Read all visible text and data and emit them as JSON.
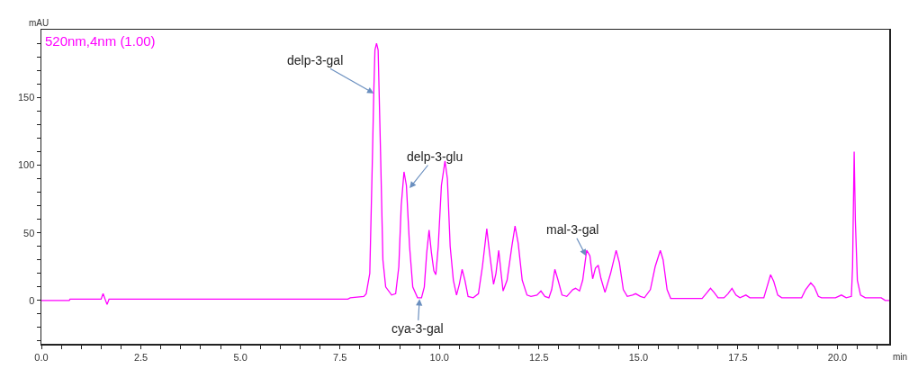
{
  "chart_data": {
    "type": "line",
    "xlabel": "min",
    "ylabel": "mAU",
    "annotations": [
      "520nm,4nm (1.00)",
      {
        "text": "delp-3-gal",
        "x": 8.35,
        "y": 153
      },
      {
        "text": "delp-3-glu",
        "x": 9.25,
        "y": 83
      },
      {
        "text": "cya-3-gal",
        "x": 9.5,
        "y": 1
      },
      {
        "text": "mal-3-gal",
        "x": 13.68,
        "y": 33
      }
    ],
    "series": [
      {
        "color": "#ff00ff",
        "x": [
          0,
          0.7,
          0.72,
          1.5,
          1.55,
          1.6,
          1.65,
          1.7,
          7.7,
          7.76,
          8.1,
          8.16,
          8.25,
          8.32,
          8.35,
          8.38,
          8.42,
          8.46,
          8.52,
          8.58,
          8.65,
          8.8,
          8.9,
          8.98,
          9.04,
          9.11,
          9.17,
          9.25,
          9.33,
          9.45,
          9.55,
          9.62,
          9.68,
          9.74,
          9.8,
          9.86,
          9.91,
          9.97,
          10.05,
          10.14,
          10.2,
          10.27,
          10.35,
          10.43,
          10.5,
          10.57,
          10.64,
          10.72,
          10.85,
          10.98,
          11.08,
          11.19,
          11.26,
          11.36,
          11.42,
          11.49,
          11.55,
          11.6,
          11.7,
          11.82,
          11.9,
          11.98,
          12.08,
          12.2,
          12.3,
          12.45,
          12.55,
          12.65,
          12.75,
          12.82,
          12.9,
          12.98,
          13.08,
          13.2,
          13.35,
          13.42,
          13.52,
          13.6,
          13.7,
          13.78,
          13.85,
          13.92,
          13.99,
          14.06,
          14.16,
          14.3,
          14.44,
          14.52,
          14.62,
          14.72,
          14.85,
          14.93,
          15.05,
          15.15,
          15.3,
          15.42,
          15.55,
          15.62,
          15.72,
          15.81,
          16.6,
          16.7,
          16.81,
          16.9,
          17.0,
          17.15,
          17.25,
          17.35,
          17.45,
          17.55,
          17.7,
          17.8,
          18.15,
          18.23,
          18.32,
          18.4,
          18.5,
          18.6,
          19.1,
          19.2,
          19.33,
          19.42,
          19.52,
          19.6,
          19.95,
          20.1,
          20.22,
          20.35,
          20.38,
          20.42,
          20.45,
          20.5,
          20.58,
          20.7,
          21.1,
          21.2,
          21.3
        ],
        "values": [
          0,
          0,
          1,
          1,
          5,
          1,
          -3,
          1,
          1,
          2,
          3,
          5,
          20,
          110,
          153,
          185,
          190,
          185,
          110,
          30,
          10,
          4,
          5,
          25,
          70,
          95,
          85,
          40,
          10,
          2,
          2,
          10,
          35,
          52,
          35,
          22,
          19,
          40,
          85,
          103,
          90,
          40,
          15,
          4,
          12,
          23,
          15,
          3,
          2,
          5,
          25,
          53,
          35,
          12,
          20,
          37,
          20,
          7,
          15,
          40,
          55,
          42,
          15,
          4,
          3,
          4,
          7,
          3,
          2,
          8,
          23,
          15,
          4,
          3,
          8,
          9,
          7,
          15,
          37,
          33,
          16,
          24,
          26,
          16,
          6,
          20,
          37,
          28,
          8,
          3,
          4,
          5,
          3,
          2,
          8,
          25,
          37,
          30,
          8,
          1.5,
          1.5,
          5,
          9,
          6,
          2,
          2,
          5,
          9,
          4,
          2,
          4,
          2,
          2,
          10,
          19,
          14,
          4,
          2,
          2,
          8,
          13,
          10,
          3,
          2,
          2,
          4,
          2,
          3,
          25,
          110,
          59,
          15,
          4,
          2,
          2,
          0,
          0
        ]
      }
    ],
    "xlim": [
      0,
      21.3
    ],
    "xticks": [
      {
        "value": 0,
        "label": "0.0"
      },
      {
        "value": 0.5,
        "label": null
      },
      {
        "value": 1,
        "label": null
      },
      {
        "value": 1.5,
        "label": null
      },
      {
        "value": 2,
        "label": null
      },
      {
        "value": 2.5,
        "label": "2.5"
      },
      {
        "value": 3,
        "label": null
      },
      {
        "value": 3.5,
        "label": null
      },
      {
        "value": 4,
        "label": null
      },
      {
        "value": 4.5,
        "label": null
      },
      {
        "value": 5,
        "label": "5.0"
      },
      {
        "value": 5.5,
        "label": null
      },
      {
        "value": 6,
        "label": null
      },
      {
        "value": 6.5,
        "label": null
      },
      {
        "value": 7,
        "label": null
      },
      {
        "value": 7.5,
        "label": "7.5"
      },
      {
        "value": 8,
        "label": null
      },
      {
        "value": 8.5,
        "label": null
      },
      {
        "value": 9,
        "label": null
      },
      {
        "value": 9.5,
        "label": null
      },
      {
        "value": 10,
        "label": "10.0"
      },
      {
        "value": 10.5,
        "label": null
      },
      {
        "value": 11,
        "label": null
      },
      {
        "value": 11.5,
        "label": null
      },
      {
        "value": 12,
        "label": null
      },
      {
        "value": 12.5,
        "label": "12.5"
      },
      {
        "value": 13,
        "label": null
      },
      {
        "value": 13.5,
        "label": null
      },
      {
        "value": 14,
        "label": null
      },
      {
        "value": 14.5,
        "label": null
      },
      {
        "value": 15,
        "label": "15.0"
      },
      {
        "value": 15.5,
        "label": null
      },
      {
        "value": 16,
        "label": null
      },
      {
        "value": 16.5,
        "label": null
      },
      {
        "value": 17,
        "label": null
      },
      {
        "value": 17.5,
        "label": "17.5"
      },
      {
        "value": 18,
        "label": null
      },
      {
        "value": 18.5,
        "label": null
      },
      {
        "value": 19,
        "label": null
      },
      {
        "value": 19.5,
        "label": null
      },
      {
        "value": 20,
        "label": "20.0"
      },
      {
        "value": 20.5,
        "label": null
      },
      {
        "value": 21,
        "label": null
      }
    ],
    "ylim": [
      -32,
      200
    ],
    "yticks": [
      {
        "value": -30,
        "label": null
      },
      {
        "value": -20,
        "label": null
      },
      {
        "value": -10,
        "label": null
      },
      0,
      {
        "value": 10,
        "label": null
      },
      {
        "value": 20,
        "label": null
      },
      {
        "value": 30,
        "label": null
      },
      {
        "value": 40,
        "label": null
      },
      50,
      {
        "value": 60,
        "label": null
      },
      {
        "value": 70,
        "label": null
      },
      {
        "value": 80,
        "label": null
      },
      {
        "value": 90,
        "label": null
      },
      100,
      {
        "value": 110,
        "label": null
      },
      {
        "value": 120,
        "label": null
      },
      {
        "value": 130,
        "label": null
      },
      {
        "value": 140,
        "label": null
      },
      150,
      {
        "value": 160,
        "label": null
      },
      {
        "value": 170,
        "label": null
      },
      {
        "value": 180,
        "label": null
      },
      {
        "value": 190,
        "label": null
      }
    ],
    "grid": false
  }
}
